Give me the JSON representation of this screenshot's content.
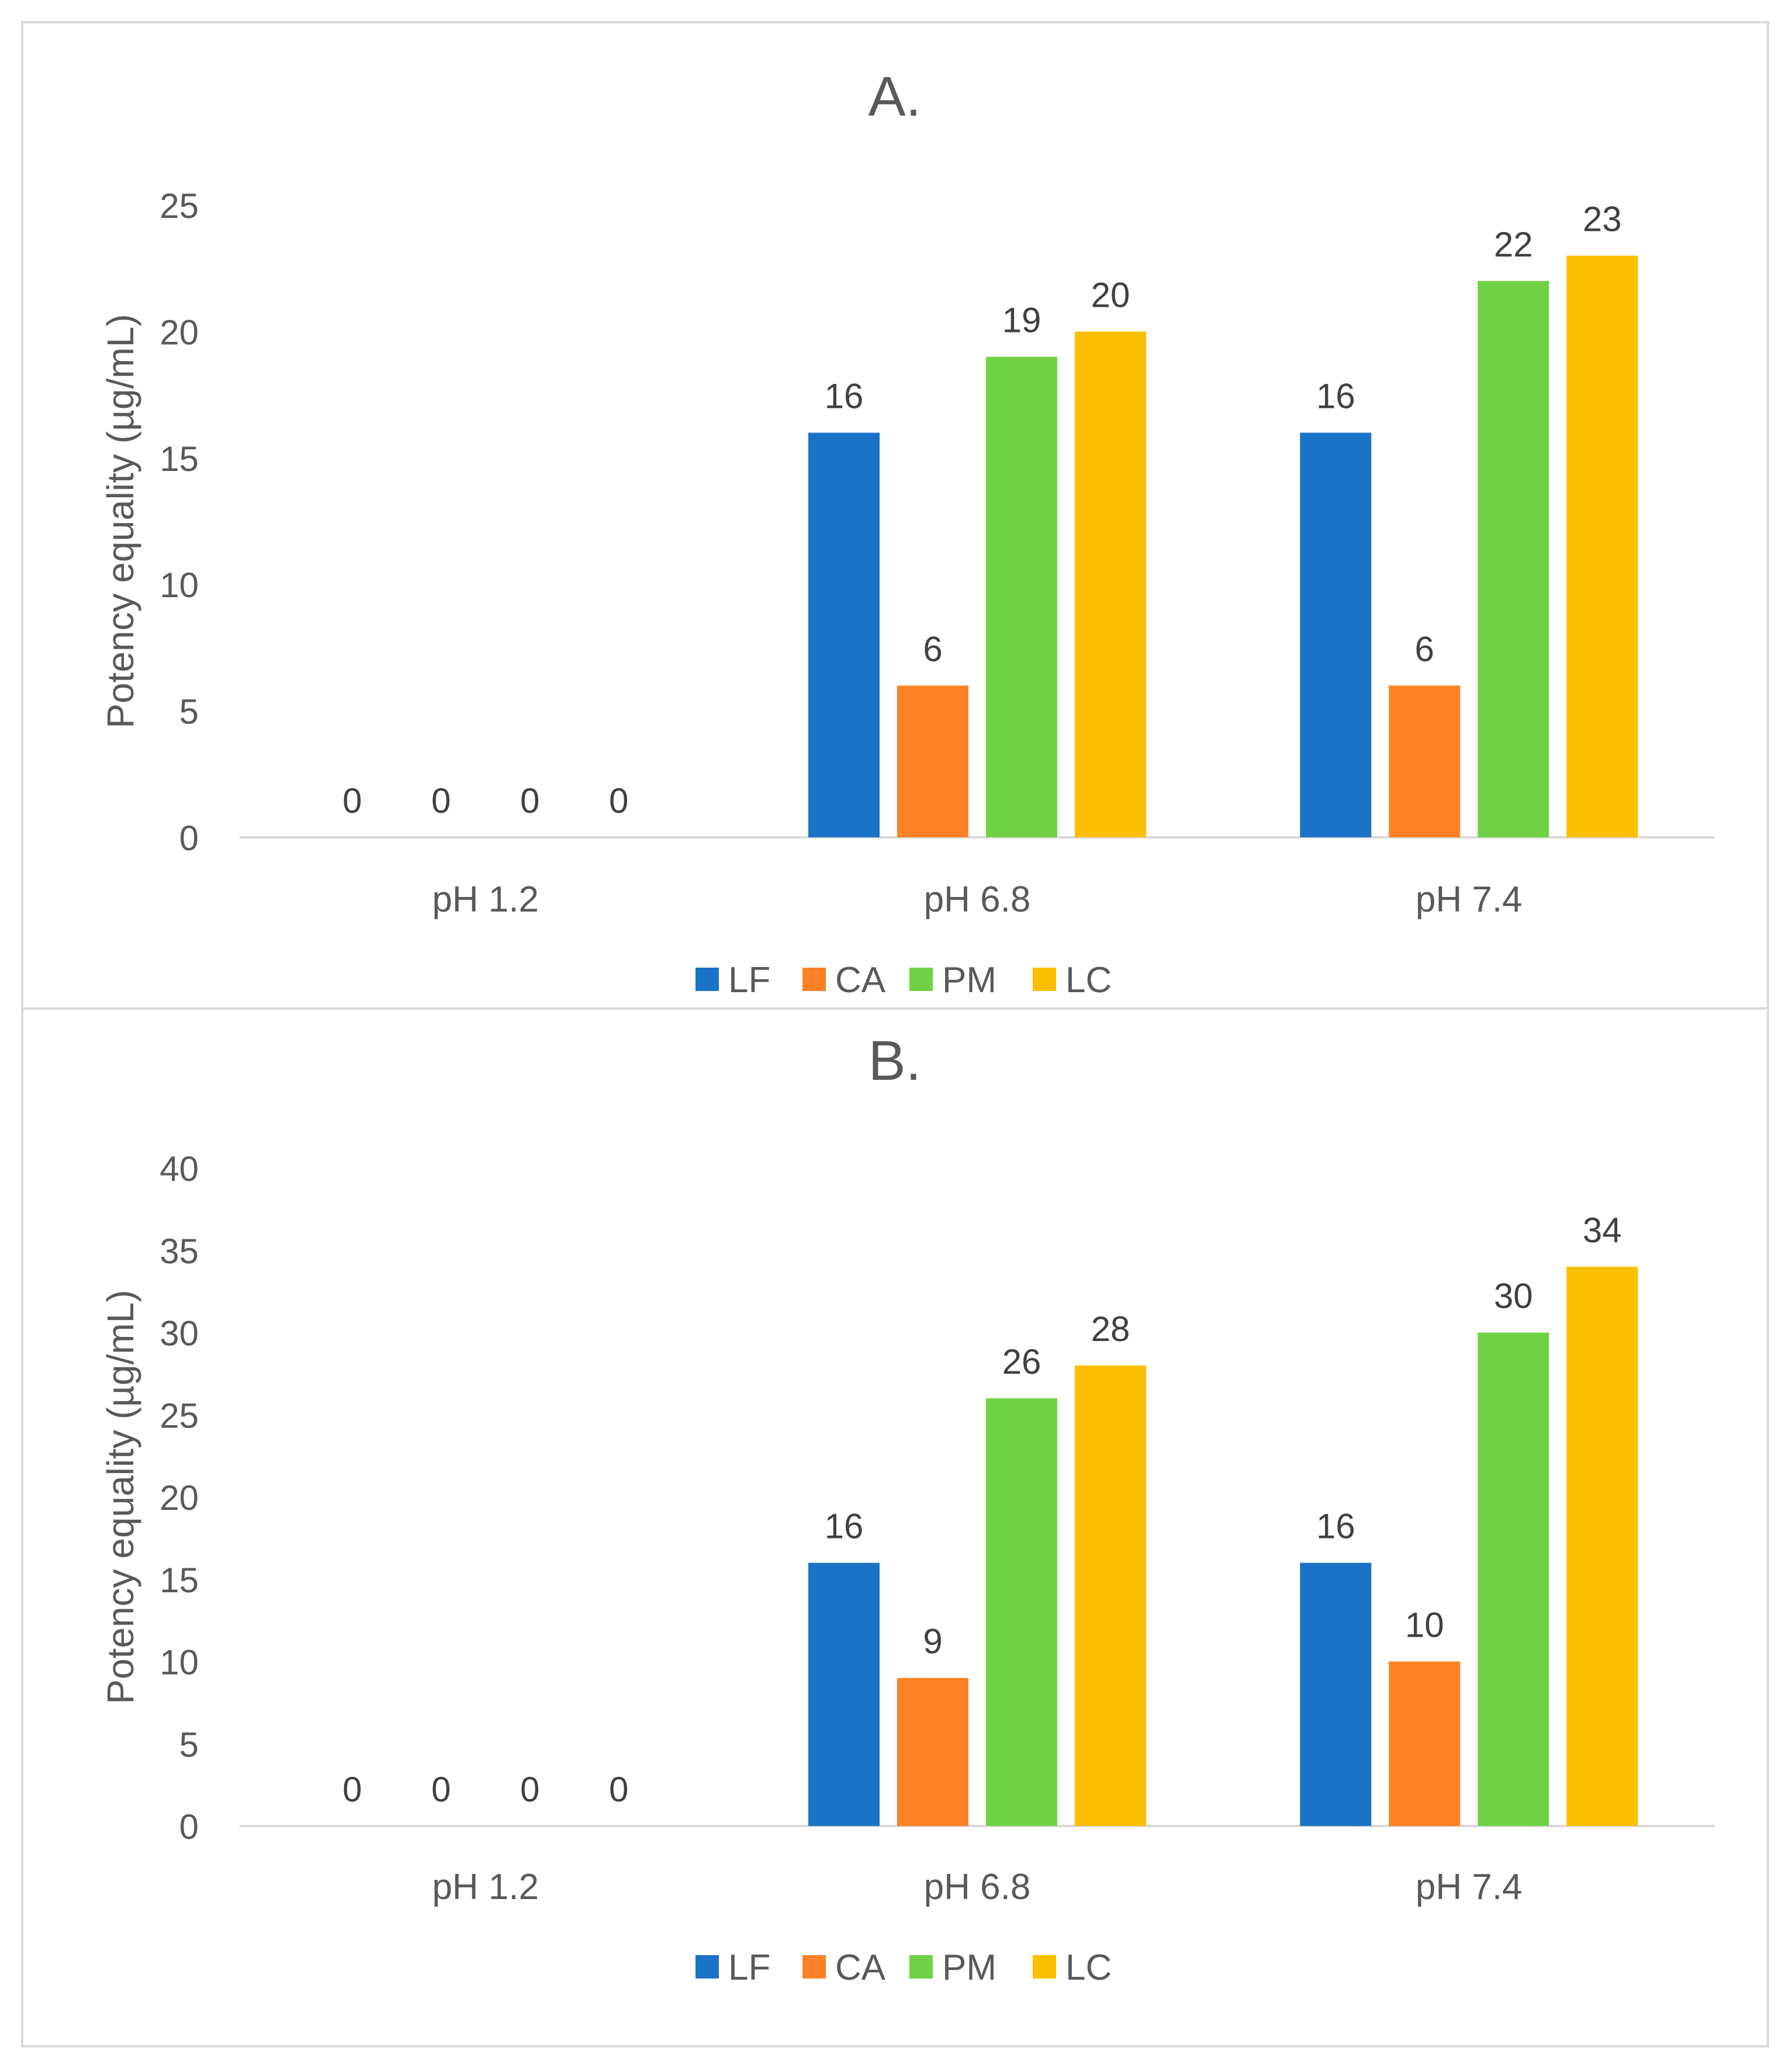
{
  "charts": {
    "categories": [
      "pH 1.2",
      "pH 6.8",
      "pH 7.4"
    ],
    "y_axis_label": "Potency equality (µg/mL)",
    "legend_labels": [
      "LF",
      "CA",
      "PM",
      "LC"
    ],
    "colors": {
      "LF": "#1a73c6",
      "CA": "#fd8125",
      "PM": "#70d145",
      "LC": "#fdc000",
      "text": "#595959",
      "axis": "#d9d9d9"
    }
  },
  "chart_data": [
    {
      "type": "bar",
      "title": "A.",
      "categories": [
        "pH 1.2",
        "pH 6.8",
        "pH 7.4"
      ],
      "series": [
        {
          "name": "LF",
          "values": [
            0,
            16,
            16
          ]
        },
        {
          "name": "CA",
          "values": [
            0,
            6,
            6
          ]
        },
        {
          "name": "PM",
          "values": [
            0,
            19,
            22
          ]
        },
        {
          "name": "LC",
          "values": [
            0,
            20,
            23
          ]
        }
      ],
      "xlabel": "",
      "ylabel": "Potency equality (µg/mL)",
      "ylim": [
        0,
        25
      ],
      "yticks": [
        0,
        5,
        10,
        15,
        20,
        25
      ],
      "legend": "bottom"
    },
    {
      "type": "bar",
      "title": "B.",
      "categories": [
        "pH 1.2",
        "pH 6.8",
        "pH 7.4"
      ],
      "series": [
        {
          "name": "LF",
          "values": [
            0,
            16,
            16
          ]
        },
        {
          "name": "CA",
          "values": [
            0,
            9,
            10
          ]
        },
        {
          "name": "PM",
          "values": [
            0,
            26,
            30
          ]
        },
        {
          "name": "LC",
          "values": [
            0,
            28,
            34
          ]
        }
      ],
      "xlabel": "",
      "ylabel": "Potency equality (µg/mL)",
      "ylim": [
        0,
        40
      ],
      "yticks": [
        0,
        5,
        10,
        15,
        20,
        25,
        30,
        35,
        40
      ],
      "legend": "bottom"
    }
  ]
}
